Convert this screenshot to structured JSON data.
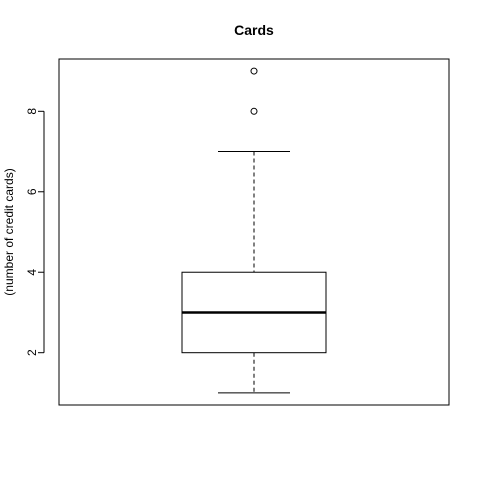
{
  "chart_data": {
    "type": "boxplot",
    "title": "Cards",
    "ylabel": "(number of credit cards)",
    "xlabel": "",
    "ylim": [
      0.7,
      9.3
    ],
    "yticks": [
      2,
      4,
      6,
      8
    ],
    "grid": false,
    "box": {
      "min": 1,
      "q1": 2,
      "median": 3,
      "q3": 4,
      "max": 7
    },
    "outliers": [
      8,
      9
    ]
  }
}
